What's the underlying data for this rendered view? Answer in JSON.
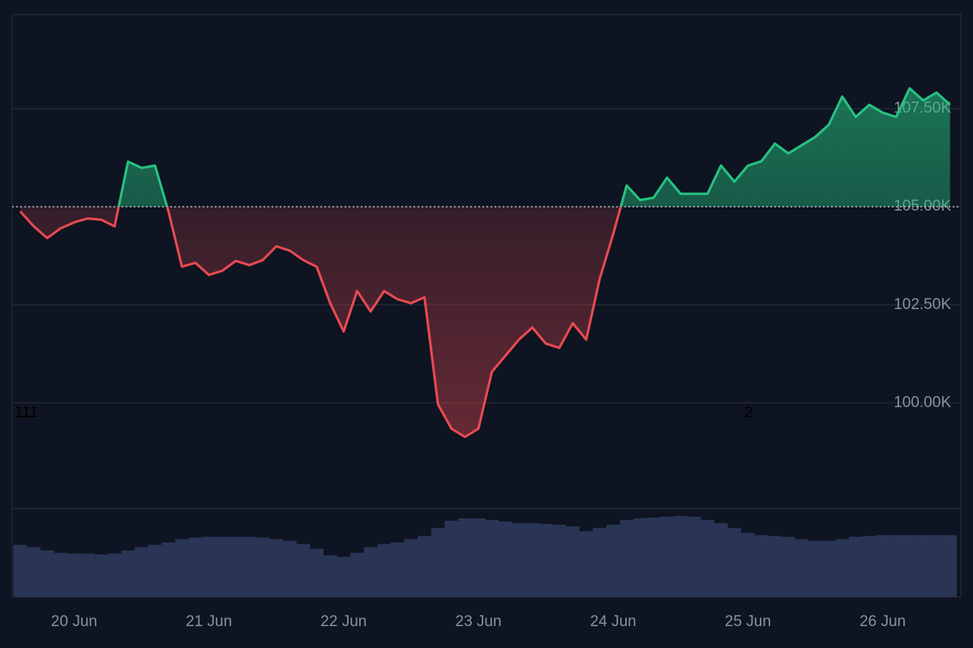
{
  "chart_data": {
    "type": "baseline-area",
    "x": [
      19.6,
      19.7,
      19.8,
      19.9,
      20.0,
      20.1,
      20.2,
      20.3,
      20.4,
      20.5,
      20.6,
      20.7,
      20.8,
      20.9,
      21.0,
      21.1,
      21.2,
      21.3,
      21.4,
      21.5,
      21.6,
      21.7,
      21.8,
      21.9,
      22.0,
      22.1,
      22.2,
      22.3,
      22.4,
      22.5,
      22.6,
      22.7,
      22.8,
      22.9,
      23.0,
      23.1,
      23.2,
      23.3,
      23.4,
      23.5,
      23.6,
      23.7,
      23.8,
      23.9,
      24.0,
      24.1,
      24.2,
      24.3,
      24.4,
      24.5,
      24.6,
      24.7,
      24.8,
      24.9,
      25.0,
      25.1,
      25.2,
      25.3,
      25.4,
      25.5,
      25.6,
      25.7,
      25.8,
      25.9,
      26.0,
      26.1,
      26.2,
      26.3,
      26.4,
      26.5
    ],
    "values": [
      104880,
      104500,
      104200,
      104450,
      104600,
      104700,
      104670,
      104500,
      106150,
      105990,
      106050,
      104880,
      103470,
      103570,
      103260,
      103370,
      103620,
      103510,
      103640,
      103990,
      103880,
      103640,
      103470,
      102540,
      101820,
      102850,
      102330,
      102850,
      102640,
      102540,
      102690,
      99960,
      99340,
      99130,
      99340,
      100790,
      101200,
      101610,
      101920,
      101510,
      101400,
      102030,
      101610,
      103160,
      104300,
      105540,
      105170,
      105230,
      105740,
      105330,
      105330,
      105330,
      106050,
      105640,
      106050,
      106160,
      106610,
      106360,
      106570,
      106780,
      107090,
      107810,
      107290,
      107600,
      107400,
      107290,
      108020,
      107710,
      107910,
      107600
    ],
    "baseline": 105000,
    "up_color": "#26c281",
    "down_color": "#e84a52",
    "xlim": [
      19.54,
      26.58
    ],
    "xticks": [
      {
        "value": 20,
        "label": "20 Jun"
      },
      {
        "value": 21,
        "label": "21 Jun"
      },
      {
        "value": 22,
        "label": "22 Jun"
      },
      {
        "value": 23,
        "label": "23 Jun"
      },
      {
        "value": 24,
        "label": "24 Jun"
      },
      {
        "value": 25,
        "label": "25 Jun"
      },
      {
        "value": 26,
        "label": "26 Jun"
      }
    ],
    "ylim": [
      97300,
      109900
    ],
    "yticks": [
      {
        "value": 100000,
        "label": "100.00K"
      },
      {
        "value": 102500,
        "label": "102.50K"
      },
      {
        "value": 105000,
        "label": "105.00K"
      },
      {
        "value": 107500,
        "label": "107.50K"
      }
    ],
    "grid": true,
    "volume": {
      "color": "#2a3556",
      "ylim": [
        0,
        110
      ],
      "values": [
        65,
        62,
        58,
        55,
        54,
        54,
        53,
        54,
        58,
        62,
        65,
        68,
        72,
        74,
        75,
        75,
        75,
        75,
        74,
        72,
        70,
        66,
        60,
        52,
        50,
        55,
        62,
        66,
        68,
        72,
        76,
        86,
        95,
        98,
        98,
        96,
        94,
        92,
        92,
        91,
        90,
        88,
        82,
        86,
        90,
        96,
        98,
        99,
        100,
        101,
        100,
        96,
        92,
        86,
        80,
        77,
        76,
        75,
        72,
        70,
        70,
        72,
        75,
        76,
        77,
        77,
        77,
        77,
        77,
        77
      ]
    },
    "annotations": [
      "111",
      "2"
    ]
  }
}
